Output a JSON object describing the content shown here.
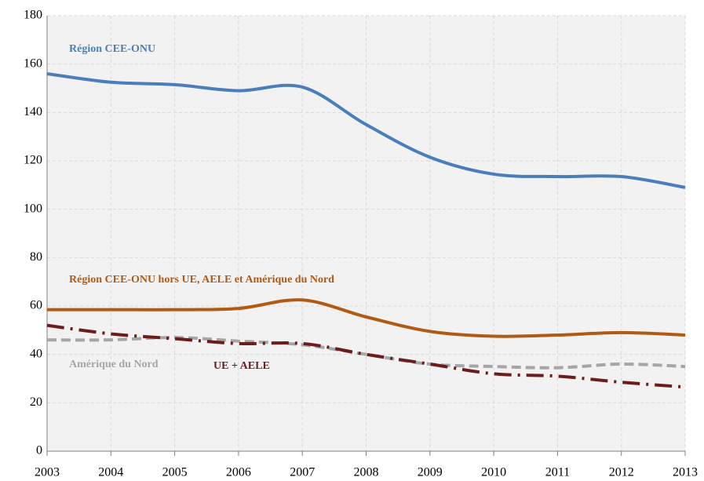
{
  "chart_data": {
    "type": "line",
    "x": [
      2003,
      2004,
      2005,
      2006,
      2007,
      2008,
      2009,
      2010,
      2011,
      2012,
      2013
    ],
    "xlim": [
      2003,
      2013
    ],
    "xticks": [
      2003,
      2004,
      2005,
      2006,
      2007,
      2008,
      2009,
      2010,
      2011,
      2012,
      2013
    ],
    "ylim": [
      0,
      180
    ],
    "yticks": [
      0,
      20,
      40,
      60,
      80,
      100,
      120,
      140,
      160,
      180
    ],
    "grid": true,
    "series": [
      {
        "name": "Région CEE-ONU",
        "color": "#4a7ebb",
        "style": "solid",
        "values": [
          156,
          152.5,
          151.5,
          149,
          150.5,
          135,
          121.5,
          114.5,
          113.5,
          113.5,
          109
        ]
      },
      {
        "name": "Région CEE-ONU hors UE, AELE et Amérique du Nord",
        "color": "#b05a14",
        "style": "solid",
        "values": [
          58.5,
          58.5,
          58.5,
          59,
          62.5,
          55.5,
          49.5,
          47.5,
          48,
          49,
          48
        ]
      },
      {
        "name": "Amérique du Nord",
        "color": "#a6a6a6",
        "style": "dashed",
        "values": [
          46,
          46,
          47,
          45.5,
          44,
          40,
          36,
          35,
          34.5,
          36,
          35
        ]
      },
      {
        "name": "UE + AELE",
        "color": "#6b1d1d",
        "style": "dashdot",
        "values": [
          52,
          48.5,
          46.5,
          44.5,
          44.5,
          40,
          36,
          32,
          31,
          28.5,
          26.5
        ]
      }
    ]
  }
}
